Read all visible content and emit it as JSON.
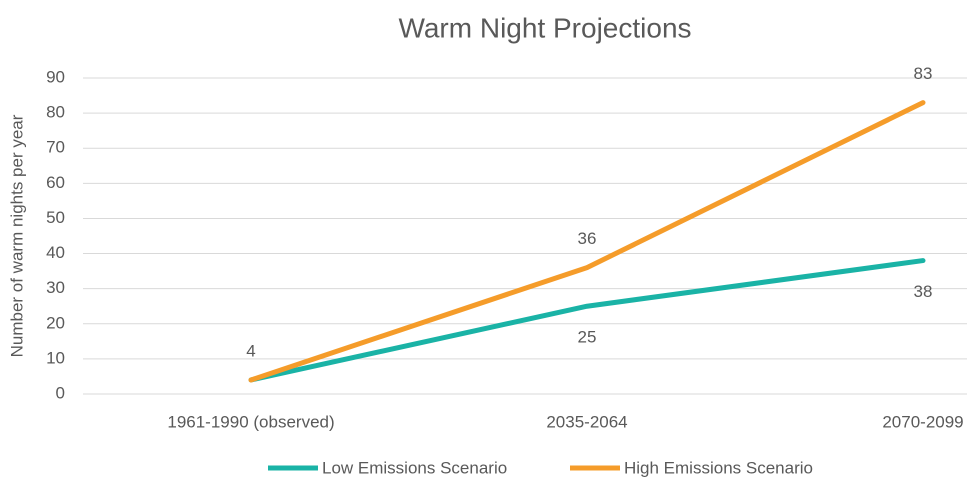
{
  "chart_data": {
    "type": "line",
    "title": "Warm Night Projections",
    "y_label": "Number of warm nights per year",
    "categories": [
      "1961-1990 (observed)",
      "2035-2064",
      "2070-2099"
    ],
    "series": [
      {
        "name": "Low Emissions Scenario",
        "color": "#1ab3a6",
        "values": [
          4,
          25,
          38
        ],
        "value_labels": [
          null,
          "25",
          "38"
        ],
        "label_position": "below"
      },
      {
        "name": "High Emissions Scenario",
        "color": "#f59c2a",
        "values": [
          4,
          36,
          83
        ],
        "value_labels": [
          "4",
          "36",
          "83"
        ],
        "label_position": "above"
      }
    ],
    "ylim": [
      0,
      90
    ],
    "yticks": [
      0,
      10,
      20,
      30,
      40,
      50,
      60,
      70,
      80,
      90
    ],
    "grid": true,
    "legend": "bottom"
  }
}
